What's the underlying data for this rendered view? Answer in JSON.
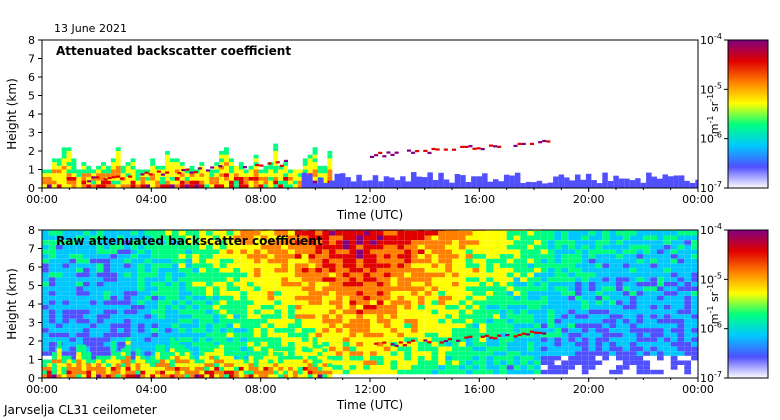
{
  "date_label": "13 June 2021",
  "footer_label": "Jarvselja CL31 ceilometer",
  "chart_data": [
    {
      "type": "heatmap",
      "title": "Attenuated backscatter coefficient",
      "xlabel": "Time (UTC)",
      "ylabel": "Height (km)",
      "xlim": [
        0,
        24
      ],
      "ylim": [
        0,
        8
      ],
      "x_ticks": [
        "00:00",
        "04:00",
        "08:00",
        "12:00",
        "16:00",
        "20:00",
        "00:00"
      ],
      "y_ticks": [
        0,
        1,
        2,
        3,
        4,
        5,
        6,
        7,
        8
      ],
      "colorbar": {
        "unit": "m-1 sr-1",
        "tick_labels": [
          "10-7",
          "10-6",
          "10-5",
          "10-4"
        ],
        "log_range": [
          -7,
          -4
        ],
        "colors": [
          "#ffffff",
          "#5050ff",
          "#00c8ff",
          "#00ff80",
          "#ffff00",
          "#ff8000",
          "#e00000",
          "#800080"
        ]
      },
      "features": [
        {
          "kind": "boundary-layer",
          "t_start": 0.0,
          "t_end": 10.5,
          "h_max": 2.4
        },
        {
          "kind": "cloud-layer",
          "t_start": 1.5,
          "t_end": 9.0,
          "h_start": 0.4,
          "h_end": 1.3
        },
        {
          "kind": "cloud-layer",
          "t_start": 12.0,
          "t_end": 18.5,
          "h_start": 1.7,
          "h_end": 2.4
        },
        {
          "kind": "low-noise",
          "t_start": 9.5,
          "t_end": 24.0,
          "h_max": 0.9
        }
      ]
    },
    {
      "type": "heatmap",
      "title": "Raw attenuated backscatter coefficient",
      "xlabel": "Time (UTC)",
      "ylabel": "Height (km)",
      "xlim": [
        0,
        24
      ],
      "ylim": [
        0,
        8
      ],
      "x_ticks": [
        "00:00",
        "04:00",
        "08:00",
        "12:00",
        "16:00",
        "20:00",
        "00:00"
      ],
      "y_ticks": [
        0,
        1,
        2,
        3,
        4,
        5,
        6,
        7,
        8
      ],
      "colorbar": {
        "unit": "m-1 sr-1",
        "tick_labels": [
          "10-7",
          "10-6",
          "10-5",
          "10-4"
        ],
        "log_range": [
          -7,
          -4
        ],
        "colors": [
          "#ffffff",
          "#5050ff",
          "#00c8ff",
          "#00ff80",
          "#ffff00",
          "#ff8000",
          "#e00000",
          "#800080"
        ]
      },
      "features": [
        {
          "kind": "daytime-noise",
          "t_start": 4.0,
          "t_end": 19.0,
          "h_max": 8.0
        },
        {
          "kind": "boundary-layer",
          "t_start": 0.0,
          "t_end": 10.5,
          "h_max": 2.4
        },
        {
          "kind": "cloud-layer",
          "t_start": 12.0,
          "t_end": 18.5,
          "h_start": 1.7,
          "h_end": 2.4
        }
      ]
    }
  ]
}
